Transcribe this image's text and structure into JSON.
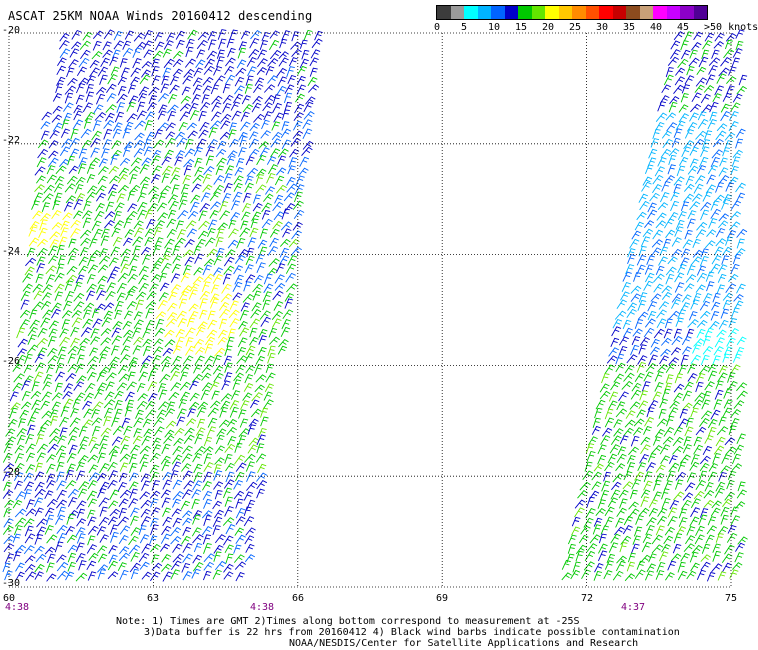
{
  "title": "ASCAT 25KM NOAA Winds 20160412 descending",
  "legend": {
    "colors": [
      "#3c3c3c",
      "#9a9a9a",
      "#00ffff",
      "#00b4ff",
      "#0064ff",
      "#0000c8",
      "#00c800",
      "#64e600",
      "#ffff00",
      "#ffc800",
      "#ff8c00",
      "#ff5000",
      "#ff0000",
      "#c80000",
      "#8c4b1e",
      "#c8a078",
      "#ff00ff",
      "#c800ff",
      "#8c00c8",
      "#500096"
    ],
    "labels": [
      "0",
      "5",
      "10",
      "15",
      "20",
      "25",
      "30",
      "35",
      "40",
      "45",
      ">50 knots"
    ]
  },
  "lat_labels": [
    "-20",
    "-22",
    "-24",
    "-26",
    "-28",
    "-30"
  ],
  "lon_labels": [
    "60",
    "63",
    "66",
    "69",
    "72",
    "75"
  ],
  "time_labels": [
    "4:38",
    "4:38",
    "4:37"
  ],
  "note": {
    "line1": "Note: 1) Times are GMT 2)Times along bottom correspond to measurement at -25S",
    "line2": "3)Data buffer is 22 hrs from 20160412 4) Black wind barbs indicate possible contamination",
    "line3": "NOAA/NESDIS/Center for Satellite Applications and Research"
  },
  "map_data": {
    "lon_range": [
      60,
      75
    ],
    "lat_range": [
      -20,
      -30
    ],
    "grid": "dotted",
    "swaths": [
      {
        "name": "west",
        "times_gmt": "4:38"
      },
      {
        "name": "east",
        "times_gmt": "4:37"
      }
    ],
    "wind_speed_colors": {
      "blue": "#0000c8",
      "mid_blue": "#0064ff",
      "light_blue": "#00b4ff",
      "cyan": "#00ffff",
      "green": "#00c800",
      "light_green": "#64e600",
      "yellow": "#ffff00"
    }
  }
}
